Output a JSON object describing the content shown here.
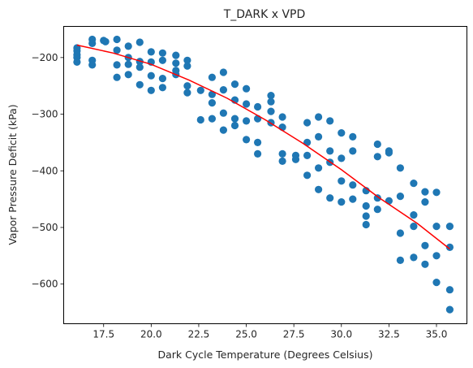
{
  "chart_data": {
    "type": "scatter",
    "title": "T_DARK x VPD",
    "xlabel": "Dark Cycle Temperature (Degrees Celsius)",
    "ylabel": "Vapor Pressure Deficit (kPa)",
    "xlim": [
      15.4,
      36.6
    ],
    "ylim": [
      -670,
      -145
    ],
    "xticks": [
      17.5,
      20.0,
      22.5,
      25.0,
      27.5,
      30.0,
      32.5,
      35.0
    ],
    "xtick_labels": [
      "17.5",
      "20.0",
      "22.5",
      "25.0",
      "27.5",
      "30.0",
      "32.5",
      "35.0"
    ],
    "yticks": [
      -200,
      -300,
      -400,
      -500,
      -600
    ],
    "ytick_labels": [
      "−200",
      "−300",
      "−400",
      "−500",
      "−600"
    ],
    "grid": false,
    "colors": {
      "points": "#1f77b4",
      "fit_line": "#ff0000",
      "axes": "#000000"
    },
    "series": [
      {
        "kind": "points",
        "points": [
          [
            16.1,
            -183
          ],
          [
            16.1,
            -188
          ],
          [
            16.1,
            -195
          ],
          [
            16.1,
            -200
          ],
          [
            16.1,
            -208
          ],
          [
            16.9,
            -168
          ],
          [
            16.9,
            -175
          ],
          [
            16.9,
            -205
          ],
          [
            16.9,
            -213
          ],
          [
            17.5,
            -170
          ],
          [
            17.6,
            -172
          ],
          [
            18.2,
            -168
          ],
          [
            18.2,
            -187
          ],
          [
            18.2,
            -213
          ],
          [
            18.2,
            -235
          ],
          [
            18.8,
            -180
          ],
          [
            18.8,
            -200
          ],
          [
            18.8,
            -212
          ],
          [
            18.8,
            -230
          ],
          [
            19.4,
            -173
          ],
          [
            19.4,
            -207
          ],
          [
            19.4,
            -217
          ],
          [
            19.4,
            -248
          ],
          [
            20.0,
            -190
          ],
          [
            20.0,
            -208
          ],
          [
            20.0,
            -232
          ],
          [
            20.0,
            -258
          ],
          [
            20.6,
            -192
          ],
          [
            20.6,
            -205
          ],
          [
            20.6,
            -237
          ],
          [
            20.6,
            -253
          ],
          [
            21.3,
            -196
          ],
          [
            21.3,
            -210
          ],
          [
            21.3,
            -223
          ],
          [
            21.3,
            -230
          ],
          [
            21.9,
            -205
          ],
          [
            21.9,
            -215
          ],
          [
            21.9,
            -250
          ],
          [
            21.9,
            -262
          ],
          [
            22.6,
            -258
          ],
          [
            22.6,
            -310
          ],
          [
            23.2,
            -235
          ],
          [
            23.2,
            -265
          ],
          [
            23.2,
            -280
          ],
          [
            23.2,
            -308
          ],
          [
            23.8,
            -226
          ],
          [
            23.8,
            -257
          ],
          [
            23.8,
            -298
          ],
          [
            23.8,
            -328
          ],
          [
            24.4,
            -247
          ],
          [
            24.4,
            -275
          ],
          [
            24.4,
            -308
          ],
          [
            24.4,
            -320
          ],
          [
            25.0,
            -255
          ],
          [
            25.0,
            -282
          ],
          [
            25.0,
            -312
          ],
          [
            25.0,
            -345
          ],
          [
            25.6,
            -287
          ],
          [
            25.6,
            -308
          ],
          [
            25.6,
            -350
          ],
          [
            25.6,
            -370
          ],
          [
            26.3,
            -267
          ],
          [
            26.3,
            -278
          ],
          [
            26.3,
            -295
          ],
          [
            26.3,
            -315
          ],
          [
            26.9,
            -305
          ],
          [
            26.9,
            -323
          ],
          [
            26.9,
            -370
          ],
          [
            26.9,
            -383
          ],
          [
            27.6,
            -373
          ],
          [
            27.6,
            -380
          ],
          [
            28.2,
            -315
          ],
          [
            28.2,
            -350
          ],
          [
            28.2,
            -373
          ],
          [
            28.2,
            -408
          ],
          [
            28.8,
            -305
          ],
          [
            28.8,
            -340
          ],
          [
            28.8,
            -395
          ],
          [
            28.8,
            -433
          ],
          [
            29.4,
            -312
          ],
          [
            29.4,
            -365
          ],
          [
            29.4,
            -385
          ],
          [
            29.4,
            -448
          ],
          [
            30.0,
            -333
          ],
          [
            30.0,
            -378
          ],
          [
            30.0,
            -418
          ],
          [
            30.0,
            -455
          ],
          [
            30.6,
            -340
          ],
          [
            30.6,
            -365
          ],
          [
            30.6,
            -425
          ],
          [
            30.6,
            -450
          ],
          [
            31.3,
            -435
          ],
          [
            31.3,
            -462
          ],
          [
            31.3,
            -480
          ],
          [
            31.3,
            -495
          ],
          [
            31.9,
            -353
          ],
          [
            31.9,
            -375
          ],
          [
            31.9,
            -448
          ],
          [
            31.9,
            -468
          ],
          [
            32.5,
            -365
          ],
          [
            32.5,
            -368
          ],
          [
            32.5,
            -453
          ],
          [
            33.1,
            -395
          ],
          [
            33.1,
            -445
          ],
          [
            33.1,
            -510
          ],
          [
            33.1,
            -558
          ],
          [
            33.8,
            -422
          ],
          [
            33.8,
            -478
          ],
          [
            33.8,
            -498
          ],
          [
            33.8,
            -553
          ],
          [
            34.4,
            -437
          ],
          [
            34.4,
            -455
          ],
          [
            34.4,
            -532
          ],
          [
            34.4,
            -565
          ],
          [
            35.0,
            -438
          ],
          [
            35.0,
            -498
          ],
          [
            35.0,
            -550
          ],
          [
            35.0,
            -597
          ],
          [
            35.7,
            -498
          ],
          [
            35.7,
            -535
          ],
          [
            35.7,
            -610
          ],
          [
            35.7,
            -645
          ]
        ]
      },
      {
        "kind": "fit_line",
        "points": [
          [
            16.1,
            -178
          ],
          [
            18.0,
            -192
          ],
          [
            20.0,
            -212
          ],
          [
            22.0,
            -240
          ],
          [
            24.0,
            -272
          ],
          [
            26.0,
            -310
          ],
          [
            28.0,
            -352
          ],
          [
            30.0,
            -398
          ],
          [
            32.0,
            -448
          ],
          [
            34.0,
            -493
          ],
          [
            35.7,
            -538
          ]
        ]
      }
    ]
  }
}
